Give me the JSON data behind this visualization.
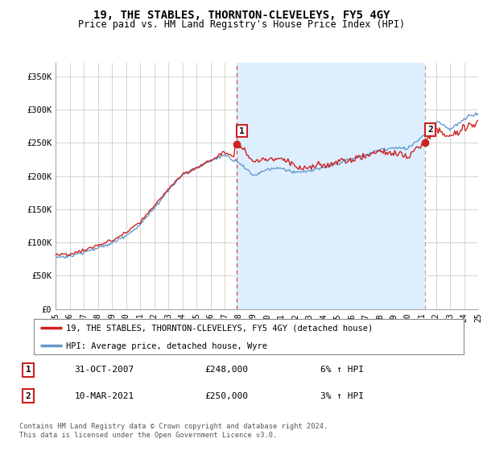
{
  "title": "19, THE STABLES, THORNTON-CLEVELEYS, FY5 4GY",
  "subtitle": "Price paid vs. HM Land Registry's House Price Index (HPI)",
  "ylabel_ticks": [
    "£0",
    "£50K",
    "£100K",
    "£150K",
    "£200K",
    "£250K",
    "£300K",
    "£350K"
  ],
  "ylim": [
    0,
    370000
  ],
  "yticks": [
    0,
    50000,
    100000,
    150000,
    200000,
    250000,
    300000,
    350000
  ],
  "sale1_date_idx": 12.83,
  "sale1_price": 248000,
  "sale1_label": "1",
  "sale1_date_str": "31-OCT-2007",
  "sale1_hpi_pct": "6% ↑ HPI",
  "sale2_date_idx": 26.2,
  "sale2_price": 250000,
  "sale2_label": "2",
  "sale2_date_str": "10-MAR-2021",
  "sale2_hpi_pct": "3% ↑ HPI",
  "legend_line1": "19, THE STABLES, THORNTON-CLEVELEYS, FY5 4GY (detached house)",
  "legend_line2": "HPI: Average price, detached house, Wyre",
  "footer": "Contains HM Land Registry data © Crown copyright and database right 2024.\nThis data is licensed under the Open Government Licence v3.0.",
  "line_color_red": "#cc2222",
  "line_color_blue": "#6699cc",
  "shade_color": "#ddeeff",
  "background_color": "#ffffff",
  "grid_color": "#cccccc",
  "years": [
    1995,
    1996,
    1997,
    1998,
    1999,
    2000,
    2001,
    2002,
    2003,
    2004,
    2005,
    2006,
    2007,
    2008,
    2009,
    2010,
    2011,
    2012,
    2013,
    2014,
    2015,
    2016,
    2017,
    2018,
    2019,
    2020,
    2021,
    2022,
    2023,
    2024,
    2025
  ],
  "hpi_values": [
    78000,
    80000,
    86000,
    93000,
    100000,
    112000,
    128000,
    152000,
    178000,
    200000,
    210000,
    220000,
    232000,
    222000,
    200000,
    210000,
    212000,
    205000,
    208000,
    212000,
    218000,
    225000,
    230000,
    238000,
    242000,
    240000,
    258000,
    282000,
    270000,
    285000,
    295000
  ]
}
